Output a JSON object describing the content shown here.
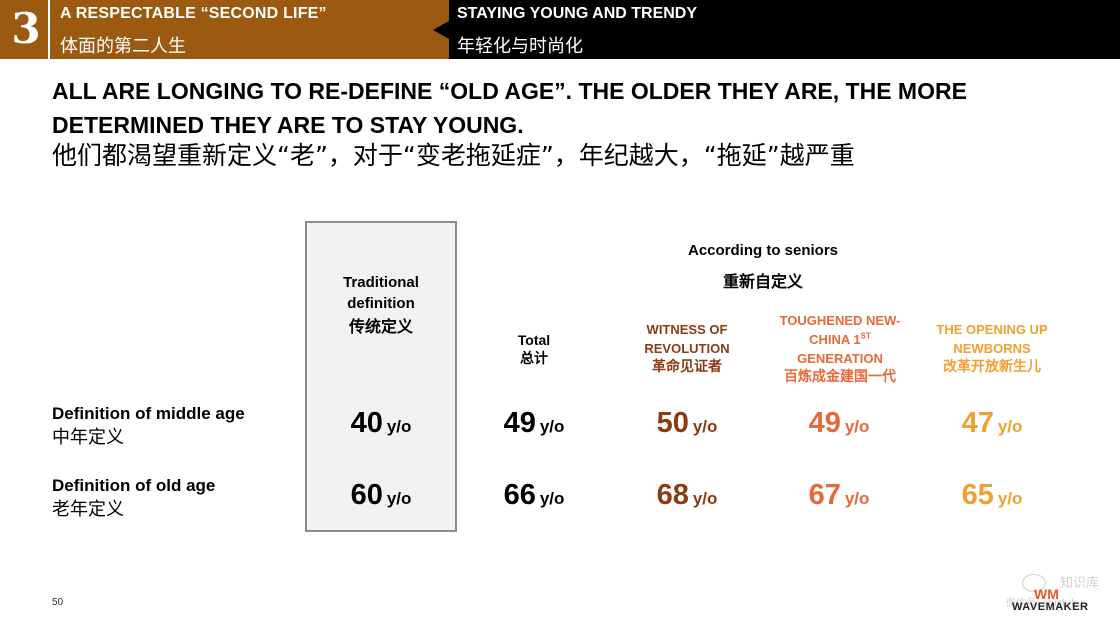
{
  "header": {
    "section_number": "3",
    "section_title_en": "A RESPECTABLE “SECOND LIFE”",
    "section_title_cn": "体面的第二人生",
    "subtitle_en": "STAYING YOUNG AND TRENDY",
    "subtitle_cn": "年轻化与时尚化"
  },
  "headline": {
    "en": "ALL ARE LONGING TO RE-DEFINE “OLD AGE”. THE OLDER THEY ARE, THE MORE DETERMINED THEY ARE TO STAY YOUNG.",
    "cn": "他们都渴望重新定义“老”，对于“变老拖延症”，年纪越大，“拖延”越严重"
  },
  "table": {
    "traditional": {
      "label_en_line1": "Traditional",
      "label_en_line2": "definition",
      "label_cn": "传统定义"
    },
    "seniors": {
      "label_en": "According to seniors",
      "label_cn": "重新自定义"
    },
    "columns": [
      {
        "label_en": "Total",
        "label_cn": "总计",
        "color": "#000000"
      },
      {
        "label_en_line1": "WITNESS OF",
        "label_en_line2": "REVOLUTION",
        "label_cn": "革命见证者",
        "color": "#8b3a12"
      },
      {
        "label_en_line1": "TOUGHENED NEW-",
        "label_en_line2": "CHINA 1",
        "label_en_sup": "ST",
        "label_en_line3": "GENERATION",
        "label_cn": "百炼成金建国一代",
        "color": "#e8683a"
      },
      {
        "label_en_line1": "THE OPENING UP",
        "label_en_line2": "NEWBORNS",
        "label_cn": "改革开放新生儿",
        "color": "#f0a030"
      }
    ],
    "unit": "y/o",
    "rows": [
      {
        "label_en": "Definition of middle age",
        "label_cn": "中年定义",
        "traditional": "40",
        "values": [
          "49",
          "50",
          "49",
          "47"
        ]
      },
      {
        "label_en": "Definition of old age",
        "label_cn": "老年定义",
        "traditional": "60",
        "values": [
          "66",
          "68",
          "67",
          "65"
        ]
      }
    ]
  },
  "footer": {
    "page_number": "50",
    "logo_mark": "WM",
    "logo_text": "WAVEMAKER",
    "watermark_text": "知识库",
    "watermark_small": "微信号: zhishiku"
  }
}
